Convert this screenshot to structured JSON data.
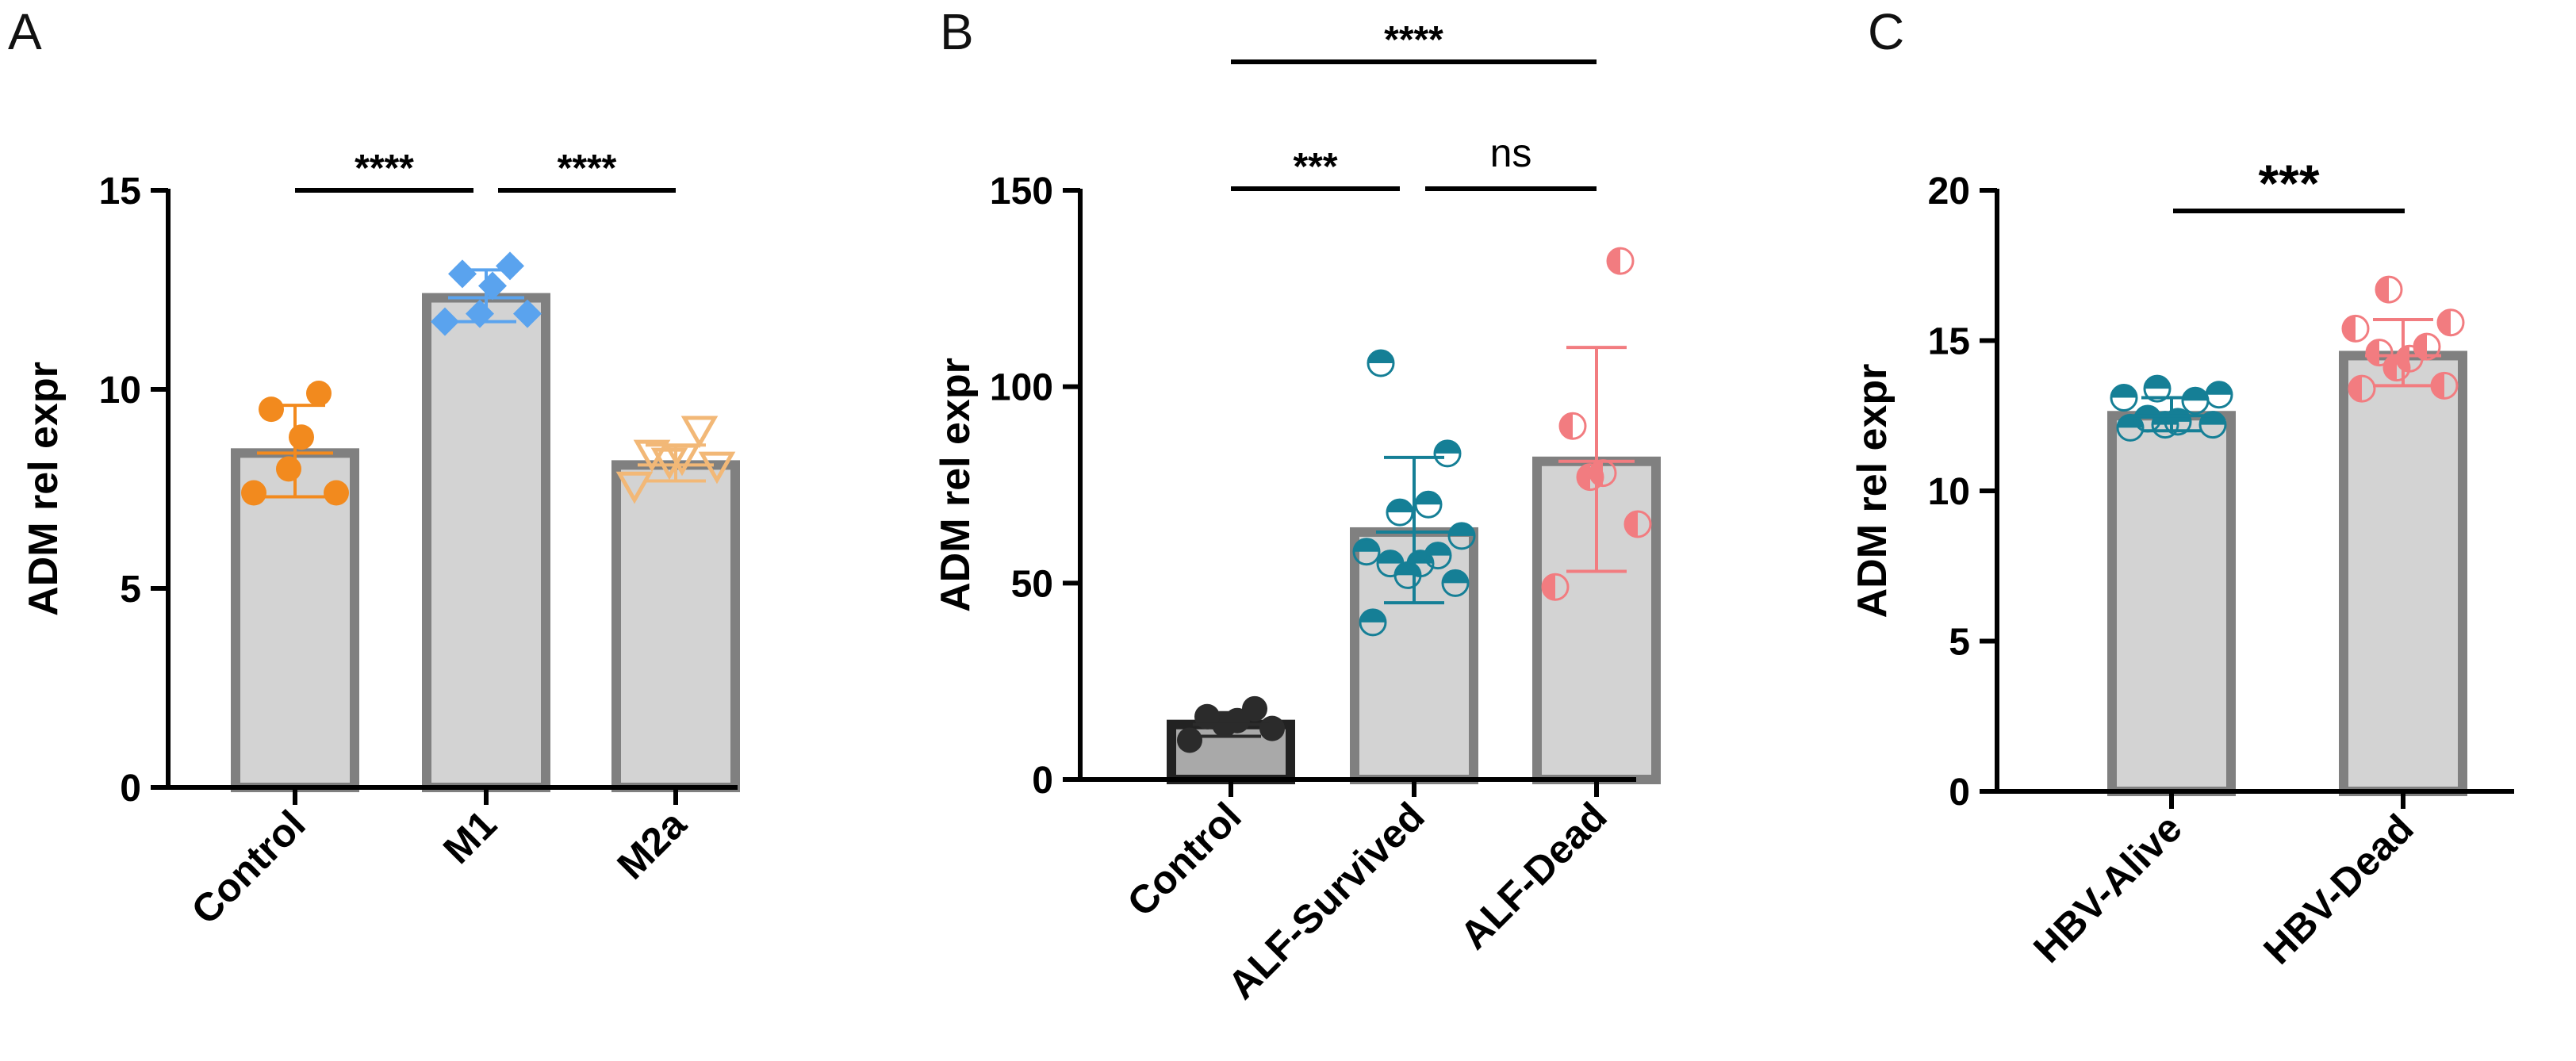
{
  "colors": {
    "bar_fill": "#d3d3d3",
    "bar_edge": "#808080",
    "bar_fill_dark": "#a9a9a9",
    "bar_edge_dark": "#222222",
    "orange": "#f28a1e",
    "blue": "#5aa3ee",
    "tan": "#f2b877",
    "dark": "#2b2b2b",
    "teal": "#157f96",
    "pink": "#f27c80"
  },
  "chart_data": [
    {
      "panel_label": "A",
      "type": "bar",
      "ylabel": "ADM rel expr",
      "ylim": [
        0,
        15
      ],
      "yticks": [
        "0",
        "5",
        "10",
        "15"
      ],
      "categories": [
        "Control",
        "M1",
        "M2a"
      ],
      "values": [
        8.4,
        12.3,
        8.1
      ],
      "error_upper": [
        9.6,
        13.0,
        8.6
      ],
      "error_lower": [
        7.3,
        11.7,
        7.7
      ],
      "series": [
        {
          "category": "Control",
          "marker": "circle-filled",
          "color": "orange",
          "points": [
            7.4,
            7.4,
            8.0,
            8.8,
            9.5,
            9.9
          ]
        },
        {
          "category": "M1",
          "marker": "diamond-filled",
          "color": "blue",
          "points": [
            11.7,
            11.9,
            11.9,
            12.6,
            12.9,
            13.1
          ]
        },
        {
          "category": "M2a",
          "marker": "triangle-down-open",
          "color": "tan",
          "points": [
            7.6,
            8.1,
            8.2,
            8.3,
            8.4,
            9.0
          ]
        }
      ],
      "significance": [
        {
          "from": 0,
          "to": 1,
          "label": "****"
        },
        {
          "from": 1,
          "to": 2,
          "label": "****"
        }
      ]
    },
    {
      "panel_label": "B",
      "type": "bar",
      "ylabel": "ADM rel expr",
      "ylim": [
        0,
        150
      ],
      "yticks": [
        "0",
        "50",
        "100",
        "150"
      ],
      "categories": [
        "Control",
        "ALF-Survived",
        "ALF-Dead"
      ],
      "values": [
        14,
        63,
        81
      ],
      "error_upper": [
        17,
        82,
        110
      ],
      "error_lower": [
        11,
        45,
        53
      ],
      "series": [
        {
          "category": "Control",
          "marker": "circle-filled",
          "color": "dark",
          "points": [
            10,
            13,
            14,
            15,
            16,
            18
          ]
        },
        {
          "category": "ALF-Survived",
          "marker": "circle-half-top",
          "color": "teal",
          "points": [
            40,
            50,
            52,
            55,
            55,
            57,
            58,
            62,
            68,
            70,
            83,
            106
          ]
        },
        {
          "category": "ALF-Dead",
          "marker": "circle-half-left",
          "color": "pink",
          "points": [
            49,
            65,
            77,
            78,
            90,
            132
          ]
        }
      ],
      "significance": [
        {
          "from": 0,
          "to": 1,
          "label": "***"
        },
        {
          "from": 1,
          "to": 2,
          "label": "ns"
        },
        {
          "from": 0,
          "to": 2,
          "label": "****"
        }
      ]
    },
    {
      "panel_label": "C",
      "type": "bar",
      "ylabel": "ADM rel expr",
      "ylim": [
        0,
        20
      ],
      "yticks": [
        "0",
        "5",
        "10",
        "15",
        "20"
      ],
      "categories": [
        "HBV-Alive",
        "HBV-Dead"
      ],
      "values": [
        12.5,
        14.5
      ],
      "error_upper": [
        13.1,
        15.7
      ],
      "error_lower": [
        12.0,
        13.5
      ],
      "series": [
        {
          "category": "HBV-Alive",
          "marker": "circle-half-top",
          "color": "teal",
          "points": [
            12.1,
            12.2,
            12.2,
            12.3,
            12.4,
            13.0,
            13.1,
            13.2,
            13.4
          ]
        },
        {
          "category": "HBV-Dead",
          "marker": "circle-half-left",
          "color": "pink",
          "points": [
            13.4,
            13.5,
            14.1,
            14.4,
            14.6,
            14.8,
            15.4,
            15.6,
            16.7
          ]
        }
      ],
      "significance": [
        {
          "from": 0,
          "to": 1,
          "label": "***"
        }
      ]
    }
  ]
}
